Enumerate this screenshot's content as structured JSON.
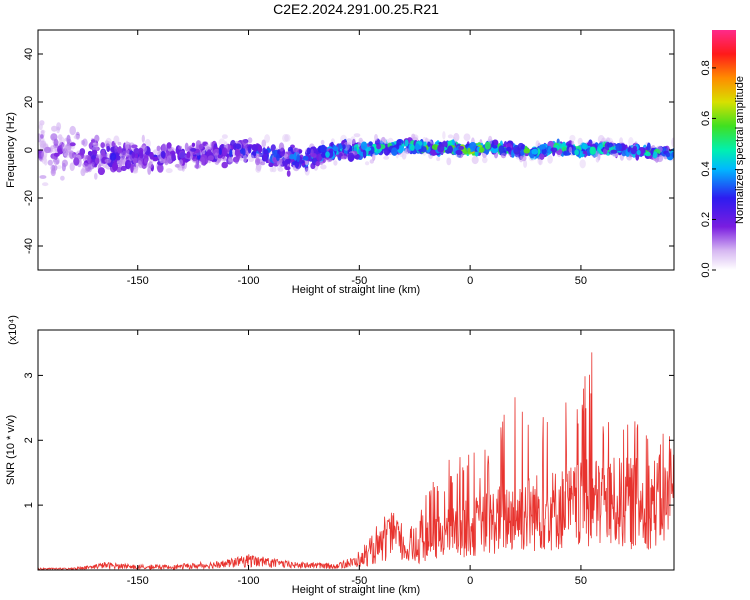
{
  "title": "C2E2.2024.291.00.25.R21",
  "chart_data": [
    {
      "type": "heatmap",
      "xlabel": "Height of straight line (km)",
      "ylabel": "Frequency (Hz)",
      "xlim": [
        -195,
        92
      ],
      "ylim": [
        -50,
        50
      ],
      "x_ticks": [
        -150,
        -100,
        -50,
        0,
        50
      ],
      "y_ticks": [
        -40,
        -20,
        0,
        20,
        40
      ],
      "colorbar": {
        "label": "Normalized spectral amplitude",
        "range": [
          0.0,
          0.95
        ],
        "ticks": [
          0.0,
          0.2,
          0.4,
          0.6,
          0.8
        ],
        "colormap": "rainbow"
      },
      "track": {
        "x": [
          -190,
          -175,
          -160,
          -140,
          -120,
          -100,
          -90,
          -80,
          -75,
          -60,
          -50,
          -40,
          -30,
          -20,
          -10,
          0,
          10,
          20,
          30,
          40,
          50,
          60,
          70,
          80,
          90
        ],
        "freq": [
          0,
          -2,
          -3,
          -3,
          -2,
          0,
          -2,
          -3,
          -4,
          0,
          0,
          1,
          2,
          1,
          1,
          0,
          1,
          0,
          -1,
          1,
          0,
          1,
          0,
          -1,
          -1
        ],
        "amp": [
          0.15,
          0.2,
          0.25,
          0.25,
          0.25,
          0.3,
          0.35,
          0.35,
          0.4,
          0.45,
          0.5,
          0.5,
          0.55,
          0.55,
          0.6,
          0.65,
          0.6,
          0.6,
          0.6,
          0.55,
          0.55,
          0.55,
          0.5,
          0.5,
          0.5
        ],
        "spread": [
          22,
          14,
          10,
          9,
          8,
          7,
          8,
          8,
          6,
          5,
          4,
          4,
          4,
          3,
          3,
          3,
          3,
          3,
          3,
          3,
          3,
          3,
          3,
          3,
          3
        ]
      }
    },
    {
      "type": "line",
      "xlabel": "Height of straight line (km)",
      "ylabel": "SNR (10 * v/v)",
      "y_multiplier": "(x10⁴)",
      "xlim": [
        -195,
        92
      ],
      "ylim": [
        0,
        3.7
      ],
      "x_ticks": [
        -150,
        -100,
        -50,
        0,
        50
      ],
      "y_ticks": [
        1,
        2,
        3
      ],
      "color": "#e8332e",
      "x": [
        -195,
        -180,
        -170,
        -165,
        -150,
        -130,
        -110,
        -100,
        -95,
        -80,
        -60,
        -50,
        -45,
        -40,
        -35,
        -30,
        -25,
        -20,
        -10,
        0,
        10,
        20,
        30,
        40,
        50,
        55,
        60,
        70,
        80,
        90
      ],
      "mean": [
        0.02,
        0.02,
        0.05,
        0.08,
        0.04,
        0.05,
        0.1,
        0.15,
        0.13,
        0.08,
        0.06,
        0.15,
        0.25,
        0.4,
        0.55,
        0.35,
        0.3,
        0.45,
        0.6,
        0.7,
        0.8,
        0.9,
        0.95,
        1.0,
        1.05,
        1.1,
        1.1,
        1.1,
        1.1,
        1.15
      ],
      "peak": [
        0.02,
        0.03,
        0.08,
        0.12,
        0.08,
        0.1,
        0.15,
        0.25,
        0.22,
        0.12,
        0.1,
        0.3,
        0.5,
        0.85,
        0.95,
        0.7,
        0.7,
        1.2,
        1.7,
        1.8,
        1.9,
        2.9,
        2.6,
        2.6,
        2.8,
        3.65,
        2.6,
        2.5,
        2.2,
        2.1
      ]
    }
  ]
}
